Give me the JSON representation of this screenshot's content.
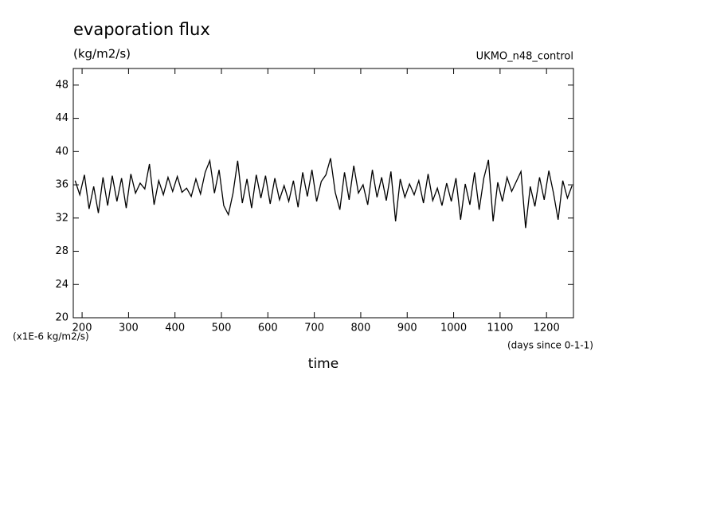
{
  "chart_data": {
    "type": "line",
    "title": "evaporation flux",
    "subtitle": "(kg/m2/s)",
    "annotation": "UKMO_n48_control",
    "y_units_label": "(x1E-6 kg/m2/s)",
    "x_units_label": "(days since 0-1-1)",
    "x_label": "time",
    "xlim": [
      181,
      1258
    ],
    "ylim": [
      20,
      50
    ],
    "xticks": [
      200,
      300,
      400,
      500,
      600,
      700,
      800,
      900,
      1000,
      1100,
      1200
    ],
    "yticks": [
      20,
      24,
      28,
      32,
      36,
      40,
      44,
      48
    ],
    "x": [
      185,
      195,
      205,
      215,
      225,
      235,
      245,
      255,
      265,
      275,
      285,
      295,
      305,
      315,
      325,
      335,
      345,
      355,
      365,
      375,
      385,
      395,
      405,
      415,
      425,
      435,
      445,
      455,
      465,
      475,
      485,
      495,
      505,
      515,
      525,
      535,
      545,
      555,
      565,
      575,
      585,
      595,
      605,
      615,
      625,
      635,
      645,
      655,
      665,
      675,
      685,
      695,
      705,
      715,
      725,
      735,
      745,
      755,
      765,
      775,
      785,
      795,
      805,
      815,
      825,
      835,
      845,
      855,
      865,
      875,
      885,
      895,
      905,
      915,
      925,
      935,
      945,
      955,
      965,
      975,
      985,
      995,
      1005,
      1015,
      1025,
      1035,
      1045,
      1055,
      1065,
      1075,
      1085,
      1095,
      1105,
      1115,
      1125,
      1135,
      1145,
      1155,
      1165,
      1175,
      1185,
      1195,
      1205,
      1215,
      1225,
      1235,
      1245,
      1255
    ],
    "series": [
      {
        "color": "#000000",
        "values": [
          36.5,
          34.8,
          37.2,
          33.1,
          35.8,
          32.6,
          36.9,
          33.5,
          37.1,
          34.0,
          36.8,
          33.2,
          37.3,
          35.0,
          36.2,
          35.5,
          38.5,
          33.6,
          36.5,
          34.8,
          36.9,
          35.2,
          37.0,
          35.1,
          35.6,
          34.6,
          36.7,
          34.9,
          37.5,
          38.9,
          35.0,
          37.8,
          33.5,
          32.4,
          35.0,
          38.9,
          33.8,
          36.7,
          33.2,
          37.2,
          34.4,
          37.1,
          33.7,
          36.8,
          34.2,
          35.9,
          34.0,
          36.5,
          33.3,
          37.5,
          34.6,
          37.8,
          34.0,
          36.4,
          37.2,
          39.2,
          35.1,
          33.0,
          37.5,
          34.2,
          38.3,
          35.0,
          36.0,
          33.6,
          37.8,
          34.5,
          36.9,
          34.1,
          37.6,
          31.6,
          36.7,
          34.5,
          36.1,
          34.8,
          36.5,
          33.8,
          37.3,
          34.1,
          35.6,
          33.5,
          36.2,
          34.0,
          36.8,
          31.8,
          36.1,
          33.6,
          37.5,
          33.0,
          36.8,
          39.0,
          31.6,
          36.3,
          34.0,
          36.9,
          35.2,
          36.4,
          37.6,
          30.8,
          35.8,
          33.4,
          36.9,
          34.2,
          37.7,
          35.0,
          31.8,
          36.5,
          34.4,
          35.9
        ]
      }
    ]
  }
}
